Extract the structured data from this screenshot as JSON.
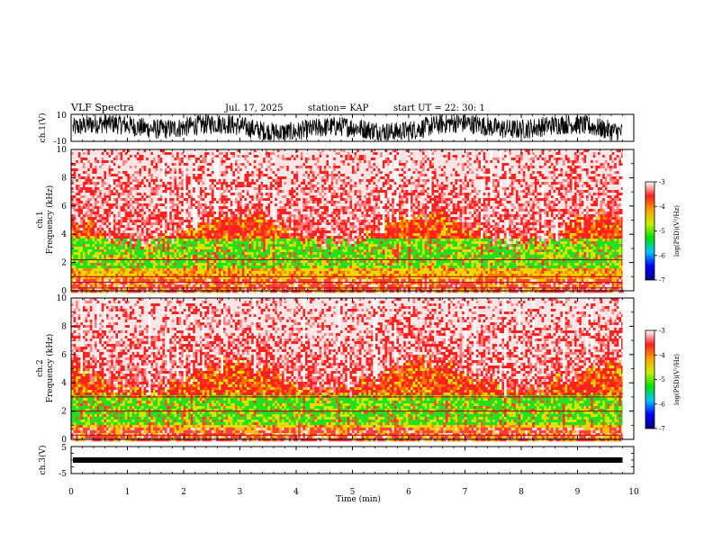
{
  "header": {
    "title": "VLF Spectra",
    "date": "Jul. 17, 2025",
    "station": "station= KAP",
    "start_ut": "start UT =  22: 30: 1"
  },
  "colors": {
    "palette": [
      "#000080",
      "#0000ff",
      "#00c8ff",
      "#00e000",
      "#c8f000",
      "#ffa000",
      "#ff2020",
      "#ffffff"
    ]
  },
  "chart_data": [
    {
      "type": "line",
      "name": "ch1-waveform",
      "ylabel": "ch.1(V)",
      "ylim": [
        -10,
        10
      ],
      "y_ticks": [
        "10",
        "-10"
      ],
      "xlim": [
        0,
        10
      ],
      "x_extent_min": 9.8
    },
    {
      "type": "heatmap",
      "name": "ch1-spectrogram",
      "ylabel": "ch.1\nFrequency (kHz)",
      "ylabel_lines": [
        "ch.1",
        "Frequency (kHz)"
      ],
      "ylim": [
        0,
        10
      ],
      "y_ticks": [
        "0",
        "2",
        "4",
        "6",
        "8",
        "10"
      ],
      "xlim": [
        0,
        10
      ],
      "x_extent_min": 9.8,
      "green_band_khz": [
        1.6,
        3.8
      ],
      "lines_khz": [
        0.2,
        0.6,
        1.0,
        2.2
      ],
      "colorbar": {
        "label": "log(PSD)(V²/Hz)",
        "range": [
          -7,
          -3
        ],
        "ticks": [
          "-3",
          "-4",
          "-5",
          "-6",
          "-7"
        ]
      }
    },
    {
      "type": "heatmap",
      "name": "ch2-spectrogram",
      "ylabel": "ch.2\nFrequency (kHz)",
      "ylabel_lines": [
        "ch.2",
        "Frequency (kHz)"
      ],
      "ylim": [
        0,
        10
      ],
      "y_ticks": [
        "0",
        "2",
        "4",
        "6",
        "8",
        "10"
      ],
      "xlim": [
        0,
        10
      ],
      "x_extent_min": 9.8,
      "green_band_khz": [
        1.2,
        3.2
      ],
      "lines_khz": [
        0.3,
        2.0,
        3.0
      ],
      "colorbar": {
        "label": "log(PSD)(V²/Hz)",
        "range": [
          -7,
          -3
        ],
        "ticks": [
          "-3",
          "-4",
          "-5",
          "-6",
          "-7"
        ]
      }
    },
    {
      "type": "line",
      "name": "ch3-waveform",
      "ylabel": "ch.3(V)",
      "ylim": [
        -5,
        5
      ],
      "y_ticks": [
        "5",
        "-5"
      ],
      "xlim": [
        0,
        10
      ],
      "x_extent_min": 9.8,
      "level_v": 0
    }
  ],
  "x_axis": {
    "label": "Time (min)",
    "ticks": [
      "0",
      "1",
      "2",
      "3",
      "4",
      "5",
      "6",
      "7",
      "8",
      "9",
      "10"
    ]
  }
}
